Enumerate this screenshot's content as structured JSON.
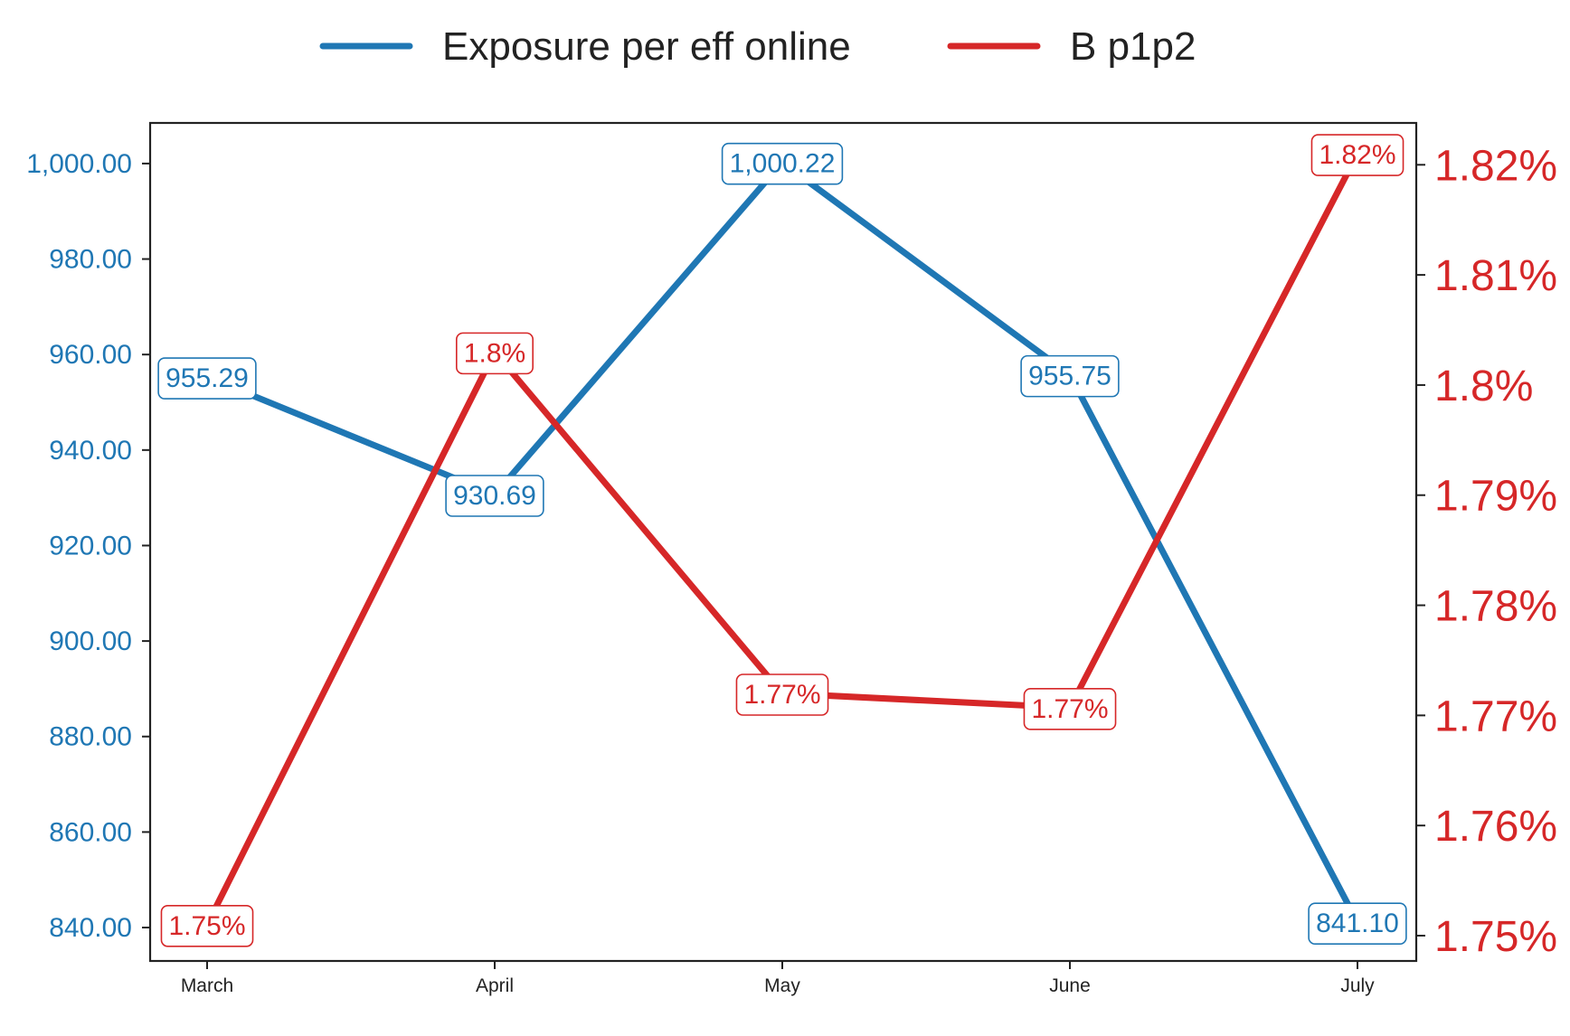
{
  "colors": {
    "series_left": "#1f77b4",
    "series_right": "#d62728",
    "axis": "#222222",
    "background": "#ffffff"
  },
  "legend": {
    "placement": "top-center",
    "items": [
      {
        "label": "Exposure per eff online",
        "color": "#1f77b4"
      },
      {
        "label": "B p1p2",
        "color": "#d62728"
      }
    ]
  },
  "chart_data": {
    "type": "line",
    "title": "",
    "xlabel": "",
    "ylabel": "",
    "ylabel_right": "",
    "grid": false,
    "categories": [
      "March",
      "April",
      "May",
      "June",
      "July"
    ],
    "ylim_left": [
      833,
      1008.5
    ],
    "ylim_right": [
      1.7477,
      1.8238
    ],
    "yticks_left": [
      840,
      860,
      880,
      900,
      920,
      940,
      960,
      980,
      1000
    ],
    "ytick_labels_left": [
      "840.00",
      "860.00",
      "880.00",
      "900.00",
      "920.00",
      "940.00",
      "960.00",
      "980.00",
      "1,000.00"
    ],
    "yticks_right": [
      1.75,
      1.76,
      1.77,
      1.78,
      1.79,
      1.8,
      1.81,
      1.82
    ],
    "ytick_labels_right": [
      "1.75%",
      "1.76%",
      "1.77%",
      "1.78%",
      "1.79%",
      "1.8%",
      "1.81%",
      "1.82%"
    ],
    "series": [
      {
        "name": "Exposure per eff online",
        "axis": "left",
        "color": "#1f77b4",
        "values": [
          955.29,
          930.69,
          1000.22,
          955.75,
          841.1
        ],
        "labels": [
          "955.29",
          "930.69",
          "1,000.22",
          "955.75",
          "841.10"
        ]
      },
      {
        "name": "B p1p2",
        "axis": "right",
        "color": "#d62728",
        "values": [
          1.751,
          1.803,
          1.772,
          1.7707,
          1.821
        ],
        "labels": [
          "1.75%",
          "1.8%",
          "1.77%",
          "1.77%",
          "1.82%"
        ]
      }
    ]
  }
}
